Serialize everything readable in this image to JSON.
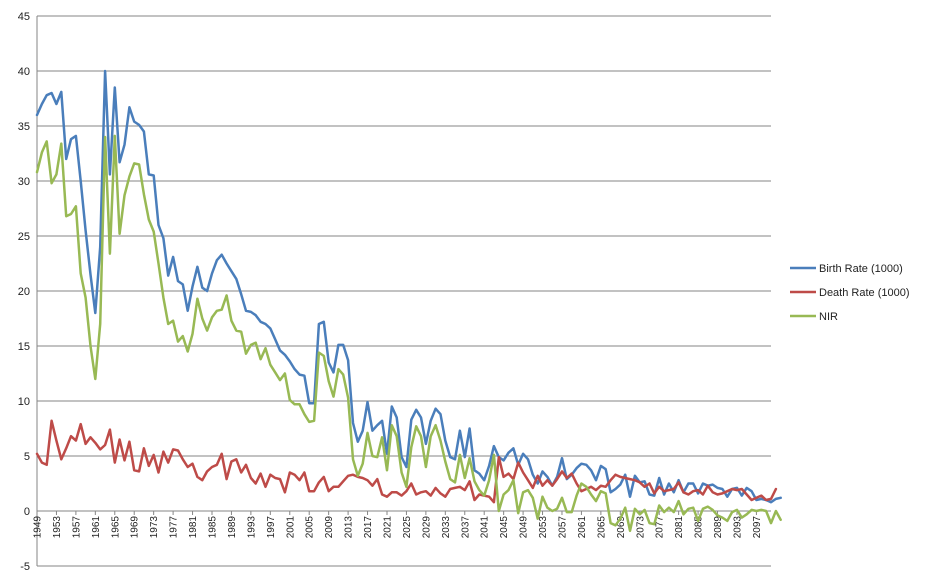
{
  "chart_data": {
    "type": "line",
    "title": "",
    "xlabel": "",
    "ylabel": "",
    "ylim": [
      -5,
      45
    ],
    "y_ticks": [
      -5,
      0,
      5,
      10,
      15,
      20,
      25,
      30,
      35,
      40,
      45
    ],
    "x_range": [
      1949,
      2100
    ],
    "x_tick_labels": [
      "1949",
      "1953",
      "1957",
      "1961",
      "1965",
      "1969",
      "1973",
      "1977",
      "1981",
      "1985",
      "1989",
      "1993",
      "1997",
      "2001",
      "2005",
      "2009",
      "2013",
      "2017",
      "2021",
      "2025",
      "2029",
      "2033",
      "2037",
      "2041",
      "2045",
      "2049",
      "2053",
      "2057",
      "2061",
      "2065",
      "2069",
      "2073",
      "2077",
      "2081",
      "2085",
      "2089",
      "2093",
      "2097"
    ],
    "grid": "horizontal",
    "legend_position": "right",
    "series": [
      {
        "name": "Birth Rate (1000)",
        "color": "#4a7ebb",
        "values": [
          36.0,
          37.0,
          37.8,
          38.0,
          37.0,
          38.1,
          32.0,
          33.8,
          34.1,
          30.0,
          25.5,
          21.5,
          18.0,
          24.0,
          40.0,
          30.6,
          38.5,
          31.7,
          33.3,
          36.7,
          35.4,
          35.1,
          34.5,
          30.6,
          30.5,
          26.0,
          24.8,
          21.4,
          23.1,
          20.9,
          20.6,
          18.2,
          20.4,
          22.2,
          20.3,
          20.0,
          21.6,
          22.8,
          23.3,
          22.5,
          21.8,
          21.1,
          19.7,
          18.2,
          18.1,
          17.8,
          17.2,
          17.0,
          16.6,
          15.6,
          14.6,
          14.2,
          13.6,
          12.9,
          12.4,
          12.3,
          9.8,
          9.8,
          17.0,
          17.2,
          13.5,
          12.6,
          15.1,
          15.1,
          13.7,
          8.0,
          6.3,
          7.3,
          9.9,
          7.3,
          7.8,
          8.2,
          5.2,
          9.5,
          8.5,
          4.9,
          4.0,
          8.3,
          9.2,
          8.5,
          6.1,
          8.2,
          9.3,
          8.8,
          6.4,
          4.9,
          4.7,
          7.3,
          4.9,
          7.5,
          3.7,
          3.4,
          2.8,
          4.1,
          5.9,
          4.9,
          4.6,
          5.3,
          5.7,
          4.2,
          5.2,
          4.7,
          3.3,
          2.5,
          3.6,
          3.1,
          2.3,
          3.1,
          4.8,
          2.9,
          3.3,
          3.9,
          4.3,
          4.2,
          3.7,
          2.8,
          4.1,
          3.8,
          1.7,
          2.0,
          2.4,
          3.3,
          1.3,
          3.2,
          2.6,
          2.7,
          1.5,
          1.4,
          3.0,
          1.5,
          2.5,
          1.7,
          2.8,
          1.7,
          2.5,
          2.5,
          1.6,
          2.5,
          2.3,
          2.4,
          2.1,
          2.0,
          1.3,
          2.0,
          2.1,
          1.4,
          2.1,
          1.8,
          1.0,
          1.1,
          1.0,
          0.8,
          1.1,
          1.2
        ]
      },
      {
        "name": "Death Rate (1000)",
        "color": "#be4b48",
        "values": [
          5.2,
          4.4,
          4.2,
          8.2,
          6.4,
          4.7,
          5.7,
          6.8,
          6.4,
          7.9,
          6.1,
          6.7,
          6.2,
          5.6,
          6.0,
          7.4,
          4.4,
          6.5,
          4.6,
          6.3,
          3.7,
          3.6,
          5.7,
          4.1,
          5.1,
          3.5,
          5.4,
          4.4,
          5.6,
          5.5,
          4.7,
          4.0,
          4.3,
          3.1,
          2.8,
          3.6,
          4.0,
          4.2,
          5.2,
          2.9,
          4.5,
          4.7,
          3.5,
          4.2,
          3.0,
          2.5,
          3.4,
          2.2,
          3.3,
          3.0,
          2.9,
          1.7,
          3.5,
          3.3,
          2.8,
          3.5,
          1.8,
          1.8,
          2.6,
          3.1,
          1.8,
          2.2,
          2.2,
          2.7,
          3.2,
          3.3,
          3.1,
          3.0,
          2.8,
          2.3,
          2.9,
          1.5,
          1.3,
          1.7,
          1.7,
          1.4,
          1.8,
          2.5,
          1.5,
          1.7,
          1.8,
          1.4,
          2.1,
          1.6,
          1.3,
          2.0,
          2.1,
          2.2,
          1.9,
          2.7,
          1.0,
          1.5,
          1.4,
          1.3,
          0.8,
          4.9,
          3.1,
          3.4,
          2.9,
          4.4,
          3.5,
          2.8,
          2.1,
          3.2,
          2.3,
          2.8,
          2.3,
          2.9,
          3.6,
          3.0,
          3.4,
          2.5,
          1.8,
          2.0,
          2.2,
          1.9,
          2.3,
          2.2,
          2.8,
          3.3,
          3.1,
          3.0,
          2.9,
          2.8,
          2.6,
          2.2,
          2.5,
          1.6,
          2.2,
          1.8,
          1.9,
          2.0,
          2.6,
          1.7,
          1.5,
          1.8,
          1.9,
          1.5,
          2.3,
          1.7,
          1.5,
          1.6,
          1.8,
          2.0,
          1.9,
          2.0,
          1.5,
          1.0,
          1.2,
          1.4,
          1.0,
          1.1,
          2.0
        ]
      },
      {
        "name": "NIR",
        "color": "#98b954",
        "values": [
          30.8,
          32.6,
          33.6,
          29.8,
          30.6,
          33.4,
          26.8,
          27.0,
          27.7,
          21.6,
          19.4,
          15.0,
          12.0,
          17.0,
          34.0,
          23.4,
          34.1,
          25.2,
          28.7,
          30.4,
          31.6,
          31.5,
          28.8,
          26.5,
          25.4,
          22.5,
          19.4,
          17.0,
          17.3,
          15.4,
          15.9,
          14.5,
          16.1,
          19.3,
          17.5,
          16.4,
          17.6,
          18.2,
          18.3,
          19.6,
          17.3,
          16.4,
          16.3,
          14.3,
          15.1,
          15.3,
          13.8,
          14.8,
          13.3,
          12.6,
          11.9,
          12.5,
          10.1,
          9.7,
          9.7,
          8.8,
          8.1,
          8.2,
          14.4,
          14.1,
          11.8,
          10.4,
          12.9,
          12.4,
          10.3,
          4.7,
          3.2,
          4.3,
          7.1,
          5.0,
          4.9,
          6.7,
          3.7,
          7.8,
          6.8,
          3.5,
          2.2,
          5.8,
          7.7,
          6.8,
          4.0,
          6.8,
          7.8,
          6.4,
          4.5,
          2.9,
          2.6,
          5.1,
          3.0,
          4.8,
          2.7,
          1.9,
          1.4,
          2.8,
          5.1,
          0.0,
          1.5,
          1.9,
          2.8,
          -0.2,
          1.7,
          1.9,
          1.2,
          -0.7,
          1.3,
          0.3,
          0.0,
          0.2,
          1.2,
          -0.1,
          -0.1,
          1.4,
          2.5,
          2.2,
          1.5,
          0.9,
          1.8,
          1.6,
          -1.1,
          -1.3,
          -0.7,
          0.3,
          -1.8,
          0.2,
          -0.3,
          0.1,
          -1.1,
          -1.2,
          0.5,
          -0.1,
          0.3,
          -0.1,
          0.9,
          -0.3,
          0.2,
          0.3,
          -0.9,
          0.2,
          0.4,
          0.1,
          -0.4,
          -0.6,
          -0.9,
          -0.1,
          0.1,
          -0.6,
          -0.3,
          0.1,
          0.0,
          0.1,
          0.0,
          -1.1,
          0.0,
          -0.8
        ]
      }
    ]
  }
}
